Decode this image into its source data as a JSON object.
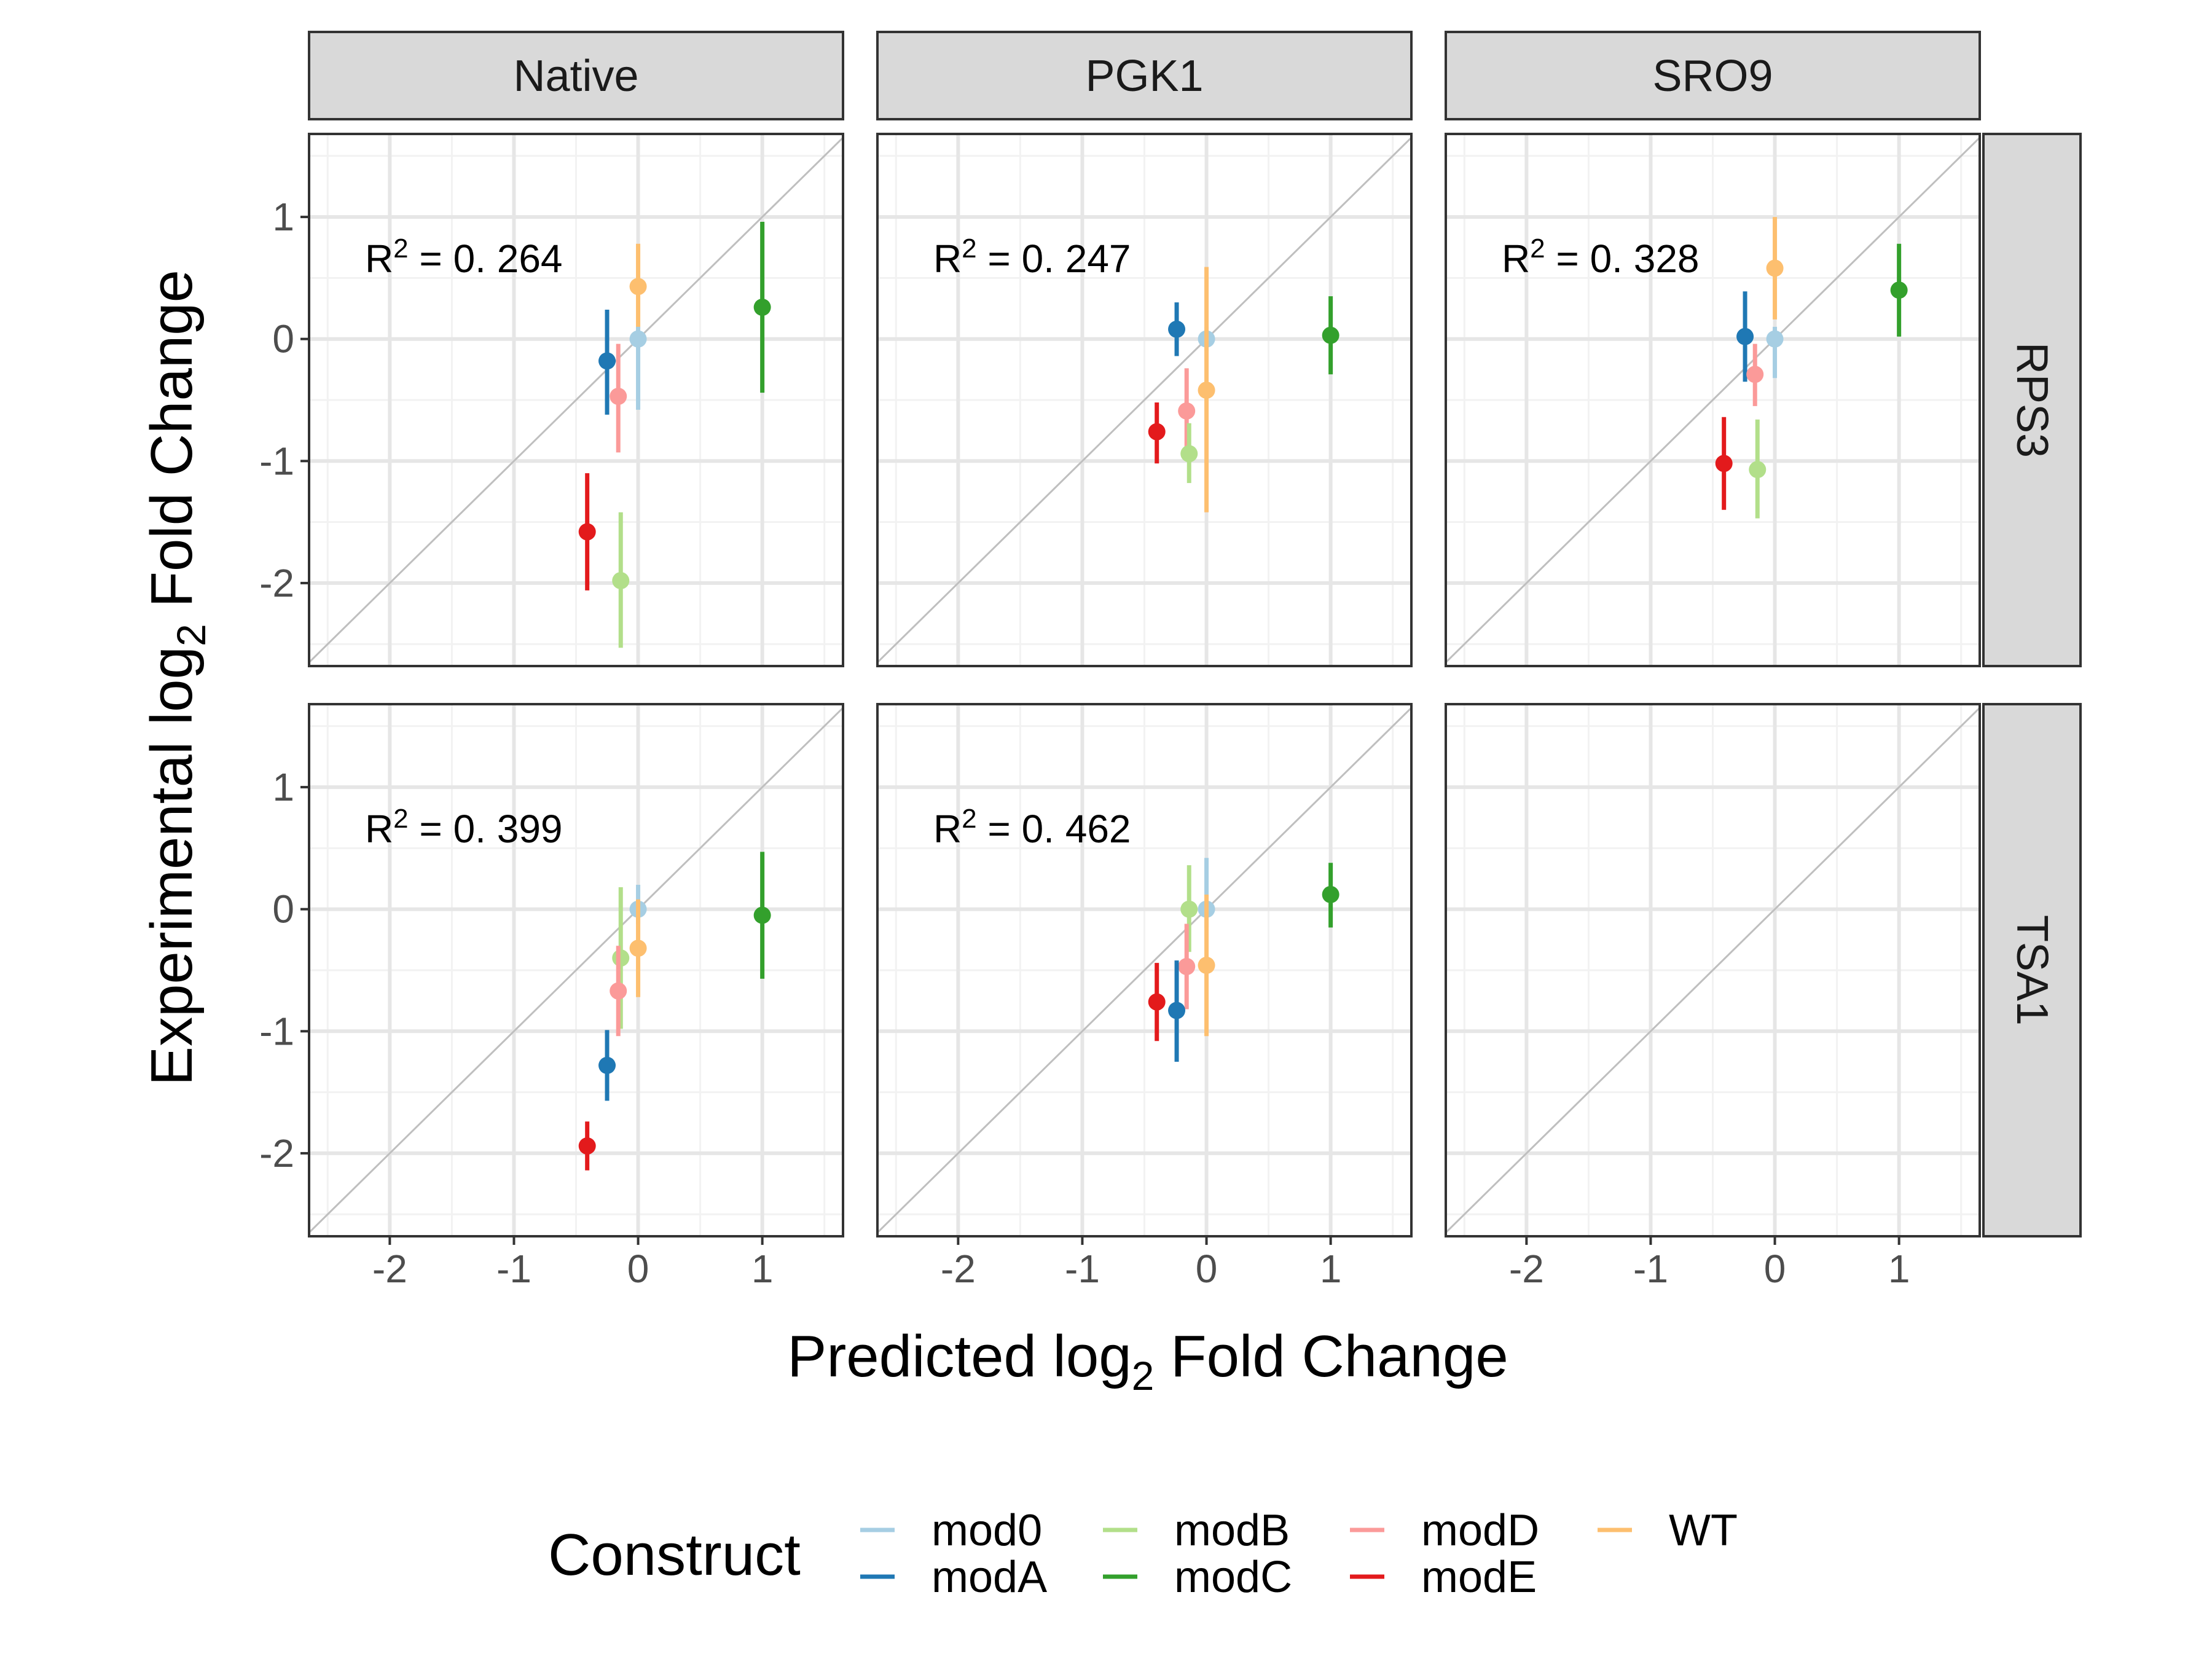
{
  "chart_data": {
    "type": "scatter",
    "xlabel": "Predicted log2 Fold Change",
    "ylabel": "Experimental log2 Fold Change",
    "xlim": [
      -2.65,
      1.65
    ],
    "ylim": [
      -2.68,
      1.68
    ],
    "x_ticks": [
      -2,
      -1,
      0,
      1
    ],
    "y_ticks": [
      1,
      0,
      -1,
      -2
    ],
    "x_tick_labels": [
      "-2",
      "-1",
      "0",
      "1"
    ],
    "y_tick_labels": [
      "1",
      "0",
      "-1",
      "-2"
    ],
    "grid": true,
    "reference_line": "y = x",
    "col_facets": [
      "Native",
      "PGK1",
      "SRO9"
    ],
    "row_facets": [
      "RPS3",
      "TSA1"
    ],
    "legend": {
      "title": "Construct",
      "position": "bottom",
      "items": [
        {
          "name": "mod0",
          "color": "#a6cee3"
        },
        {
          "name": "modA",
          "color": "#1f78b4"
        },
        {
          "name": "modB",
          "color": "#b2df8a"
        },
        {
          "name": "modC",
          "color": "#33a02c"
        },
        {
          "name": "modD",
          "color": "#fb9a99"
        },
        {
          "name": "modE",
          "color": "#e31a1c"
        },
        {
          "name": "WT",
          "color": "#fdbf6f"
        }
      ]
    },
    "panels": [
      {
        "col": "Native",
        "row": "RPS3",
        "r2_label": "R2 = 0. 264",
        "points": [
          {
            "construct": "WT",
            "x": 0.0,
            "y": 0.43,
            "lo": 0.08,
            "hi": 0.78
          },
          {
            "construct": "mod0",
            "x": 0.0,
            "y": 0.0,
            "lo": -0.58,
            "hi": 0.1
          },
          {
            "construct": "modA",
            "x": -0.25,
            "y": -0.18,
            "lo": -0.62,
            "hi": 0.24
          },
          {
            "construct": "modD",
            "x": -0.16,
            "y": -0.47,
            "lo": -0.93,
            "hi": -0.04
          },
          {
            "construct": "modC",
            "x": 1.0,
            "y": 0.26,
            "lo": -0.44,
            "hi": 0.96
          },
          {
            "construct": "modE",
            "x": -0.41,
            "y": -1.58,
            "lo": -2.06,
            "hi": -1.1
          },
          {
            "construct": "modB",
            "x": -0.14,
            "y": -1.98,
            "lo": -2.53,
            "hi": -1.42
          }
        ]
      },
      {
        "col": "PGK1",
        "row": "RPS3",
        "r2_label": "R2 = 0. 247",
        "points": [
          {
            "construct": "modA",
            "x": -0.24,
            "y": 0.08,
            "lo": -0.14,
            "hi": 0.3
          },
          {
            "construct": "mod0",
            "x": 0.0,
            "y": 0.0,
            "lo": -0.1,
            "hi": 0.1
          },
          {
            "construct": "WT",
            "x": 0.0,
            "y": -0.42,
            "lo": -1.42,
            "hi": 0.59
          },
          {
            "construct": "modC",
            "x": 1.0,
            "y": 0.03,
            "lo": -0.29,
            "hi": 0.35
          },
          {
            "construct": "modD",
            "x": -0.16,
            "y": -0.59,
            "lo": -0.93,
            "hi": -0.24
          },
          {
            "construct": "modE",
            "x": -0.4,
            "y": -0.76,
            "lo": -1.02,
            "hi": -0.52
          },
          {
            "construct": "modB",
            "x": -0.14,
            "y": -0.94,
            "lo": -1.18,
            "hi": -0.69
          }
        ]
      },
      {
        "col": "SRO9",
        "row": "RPS3",
        "r2_label": "R2 = 0. 328",
        "points": [
          {
            "construct": "WT",
            "x": 0.0,
            "y": 0.58,
            "lo": 0.16,
            "hi": 1.0
          },
          {
            "construct": "modC",
            "x": 1.0,
            "y": 0.4,
            "lo": 0.02,
            "hi": 0.78
          },
          {
            "construct": "modA",
            "x": -0.24,
            "y": 0.02,
            "lo": -0.35,
            "hi": 0.39
          },
          {
            "construct": "mod0",
            "x": 0.0,
            "y": 0.0,
            "lo": -0.32,
            "hi": 0.1
          },
          {
            "construct": "modD",
            "x": -0.16,
            "y": -0.29,
            "lo": -0.55,
            "hi": -0.04
          },
          {
            "construct": "modE",
            "x": -0.41,
            "y": -1.02,
            "lo": -1.4,
            "hi": -0.64
          },
          {
            "construct": "modB",
            "x": -0.14,
            "y": -1.07,
            "lo": -1.47,
            "hi": -0.66
          }
        ]
      },
      {
        "col": "Native",
        "row": "TSA1",
        "r2_label": "R2 = 0. 399",
        "points": [
          {
            "construct": "mod0",
            "x": 0.0,
            "y": 0.0,
            "lo": -0.12,
            "hi": 0.2
          },
          {
            "construct": "WT",
            "x": 0.0,
            "y": -0.32,
            "lo": -0.72,
            "hi": 0.08
          },
          {
            "construct": "modB",
            "x": -0.14,
            "y": -0.4,
            "lo": -0.98,
            "hi": 0.18
          },
          {
            "construct": "modD",
            "x": -0.16,
            "y": -0.67,
            "lo": -1.04,
            "hi": -0.3
          },
          {
            "construct": "modC",
            "x": 1.0,
            "y": -0.05,
            "lo": -0.57,
            "hi": 0.47
          },
          {
            "construct": "modA",
            "x": -0.25,
            "y": -1.28,
            "lo": -1.57,
            "hi": -0.99
          },
          {
            "construct": "modE",
            "x": -0.41,
            "y": -1.94,
            "lo": -2.14,
            "hi": -1.74
          }
        ]
      },
      {
        "col": "PGK1",
        "row": "TSA1",
        "r2_label": "R2 = 0. 462",
        "points": [
          {
            "construct": "mod0",
            "x": 0.0,
            "y": 0.0,
            "lo": -0.15,
            "hi": 0.42
          },
          {
            "construct": "modB",
            "x": -0.14,
            "y": 0.0,
            "lo": -0.35,
            "hi": 0.36
          },
          {
            "construct": "modC",
            "x": 1.0,
            "y": 0.12,
            "lo": -0.15,
            "hi": 0.38
          },
          {
            "construct": "modD",
            "x": -0.16,
            "y": -0.47,
            "lo": -0.82,
            "hi": -0.12
          },
          {
            "construct": "WT",
            "x": 0.0,
            "y": -0.46,
            "lo": -1.04,
            "hi": 0.12
          },
          {
            "construct": "modE",
            "x": -0.4,
            "y": -0.76,
            "lo": -1.08,
            "hi": -0.44
          },
          {
            "construct": "modA",
            "x": -0.24,
            "y": -0.83,
            "lo": -1.25,
            "hi": -0.42
          }
        ]
      },
      {
        "col": "SRO9",
        "row": "TSA1",
        "r2_label": "",
        "points": []
      }
    ]
  }
}
